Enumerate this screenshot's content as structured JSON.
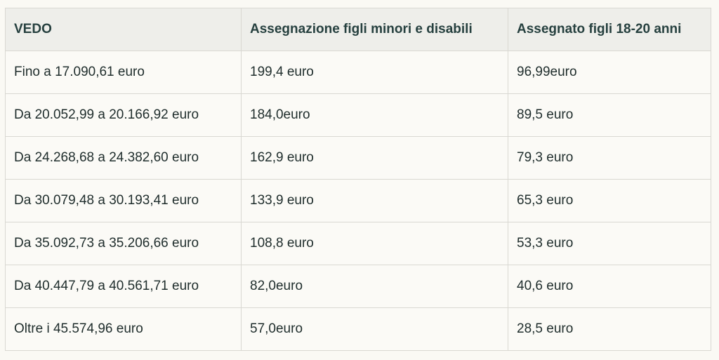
{
  "table": {
    "headers": [
      "VEDO",
      "Assegnazione figli minori e disabili",
      "Assegnato figli 18-20 anni"
    ],
    "rows": [
      [
        "Fino a 17.090,61 euro",
        "199,4 euro",
        "96,99euro"
      ],
      [
        "Da 20.052,99 a 20.166,92 euro",
        "184,0euro",
        "89,5 euro"
      ],
      [
        "Da 24.268,68 a 24.382,60 euro",
        "162,9 euro",
        "79,3 euro"
      ],
      [
        "Da 30.079,48 a 30.193,41 euro",
        "133,9 euro",
        "65,3 euro"
      ],
      [
        "Da 35.092,73 a 35.206,66 euro",
        "108,8 euro",
        "53,3 euro"
      ],
      [
        "Da 40.447,79 a 40.561,71 euro",
        "82,0euro",
        "40,6 euro"
      ],
      [
        "Oltre i 45.574,96 euro",
        "57,0euro",
        "28,5 euro"
      ]
    ]
  }
}
